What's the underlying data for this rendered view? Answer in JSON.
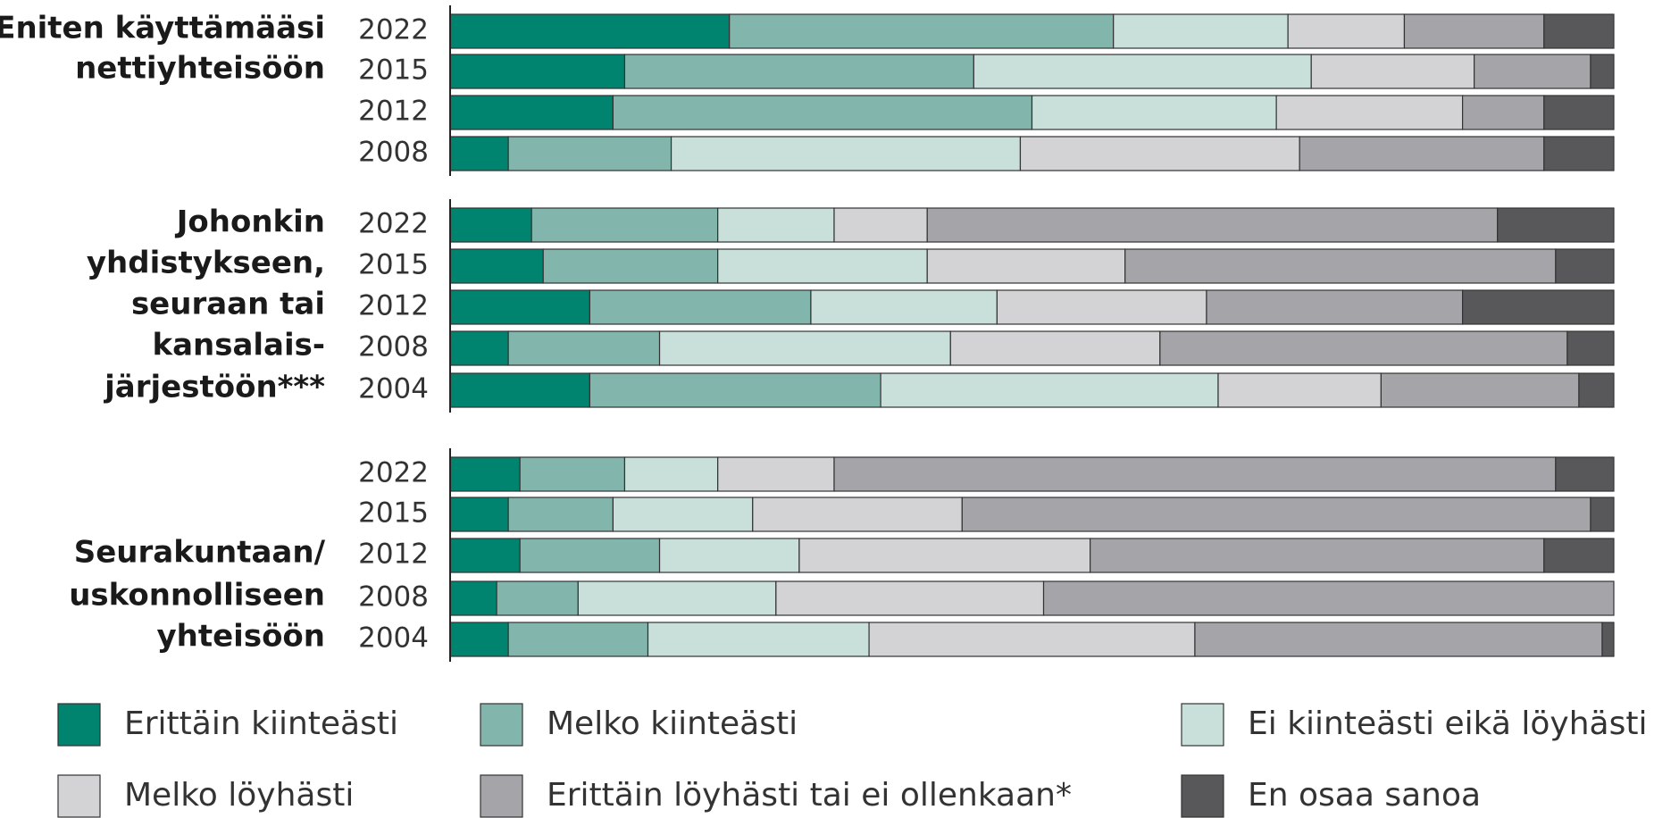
{
  "chart_data": {
    "type": "stacked-bar",
    "xlim": [
      0,
      100
    ],
    "series": [
      {
        "name": "Erittäin kiinteästi",
        "color": "#00836f"
      },
      {
        "name": "Melko kiinteästi",
        "color": "#82b6ac"
      },
      {
        "name": "Ei kiinteästi eikä löyhästi",
        "color": "#c9e0da"
      },
      {
        "name": "Melko löyhästi",
        "color": "#d3d3d5"
      },
      {
        "name": "Erittäin löyhästi tai ei ollenkaan*",
        "color": "#a5a5a9"
      },
      {
        "name": "En osaa sanoa",
        "color": "#58585a"
      }
    ],
    "groups": [
      {
        "label": [
          "Eniten käyttämääsi",
          "nettiyhteisöön"
        ],
        "categories": [
          "2022",
          "2015",
          "2012",
          "2008"
        ],
        "values": [
          [
            24,
            33,
            15,
            10,
            12,
            6
          ],
          [
            15,
            30,
            29,
            14,
            10,
            2
          ],
          [
            14,
            36,
            21,
            16,
            7,
            6
          ],
          [
            5,
            14,
            30,
            24,
            21,
            6
          ]
        ]
      },
      {
        "label": [
          "Johonkin",
          "yhdistykseen,",
          "seuraan tai",
          "kansalais-",
          "järjestöön***"
        ],
        "categories": [
          "2022",
          "2015",
          "2012",
          "2008",
          "2004"
        ],
        "values": [
          [
            7,
            16,
            10,
            8,
            49,
            10
          ],
          [
            8,
            15,
            18,
            17,
            37,
            5
          ],
          [
            12,
            19,
            16,
            18,
            22,
            13
          ],
          [
            5,
            13,
            25,
            18,
            35,
            4
          ],
          [
            12,
            25,
            29,
            14,
            17,
            3
          ]
        ]
      },
      {
        "label": [
          "Seurakuntaan/",
          "uskonnolliseen",
          "yhteisöön"
        ],
        "categories": [
          "2022",
          "2015",
          "2012",
          "2008",
          "2004"
        ],
        "values": [
          [
            6,
            9,
            8,
            10,
            62,
            5
          ],
          [
            5,
            9,
            12,
            18,
            54,
            2
          ],
          [
            6,
            12,
            12,
            25,
            39,
            6
          ],
          [
            4,
            7,
            17,
            23,
            49,
            0
          ],
          [
            5,
            12,
            19,
            28,
            35,
            1
          ]
        ]
      }
    ]
  }
}
